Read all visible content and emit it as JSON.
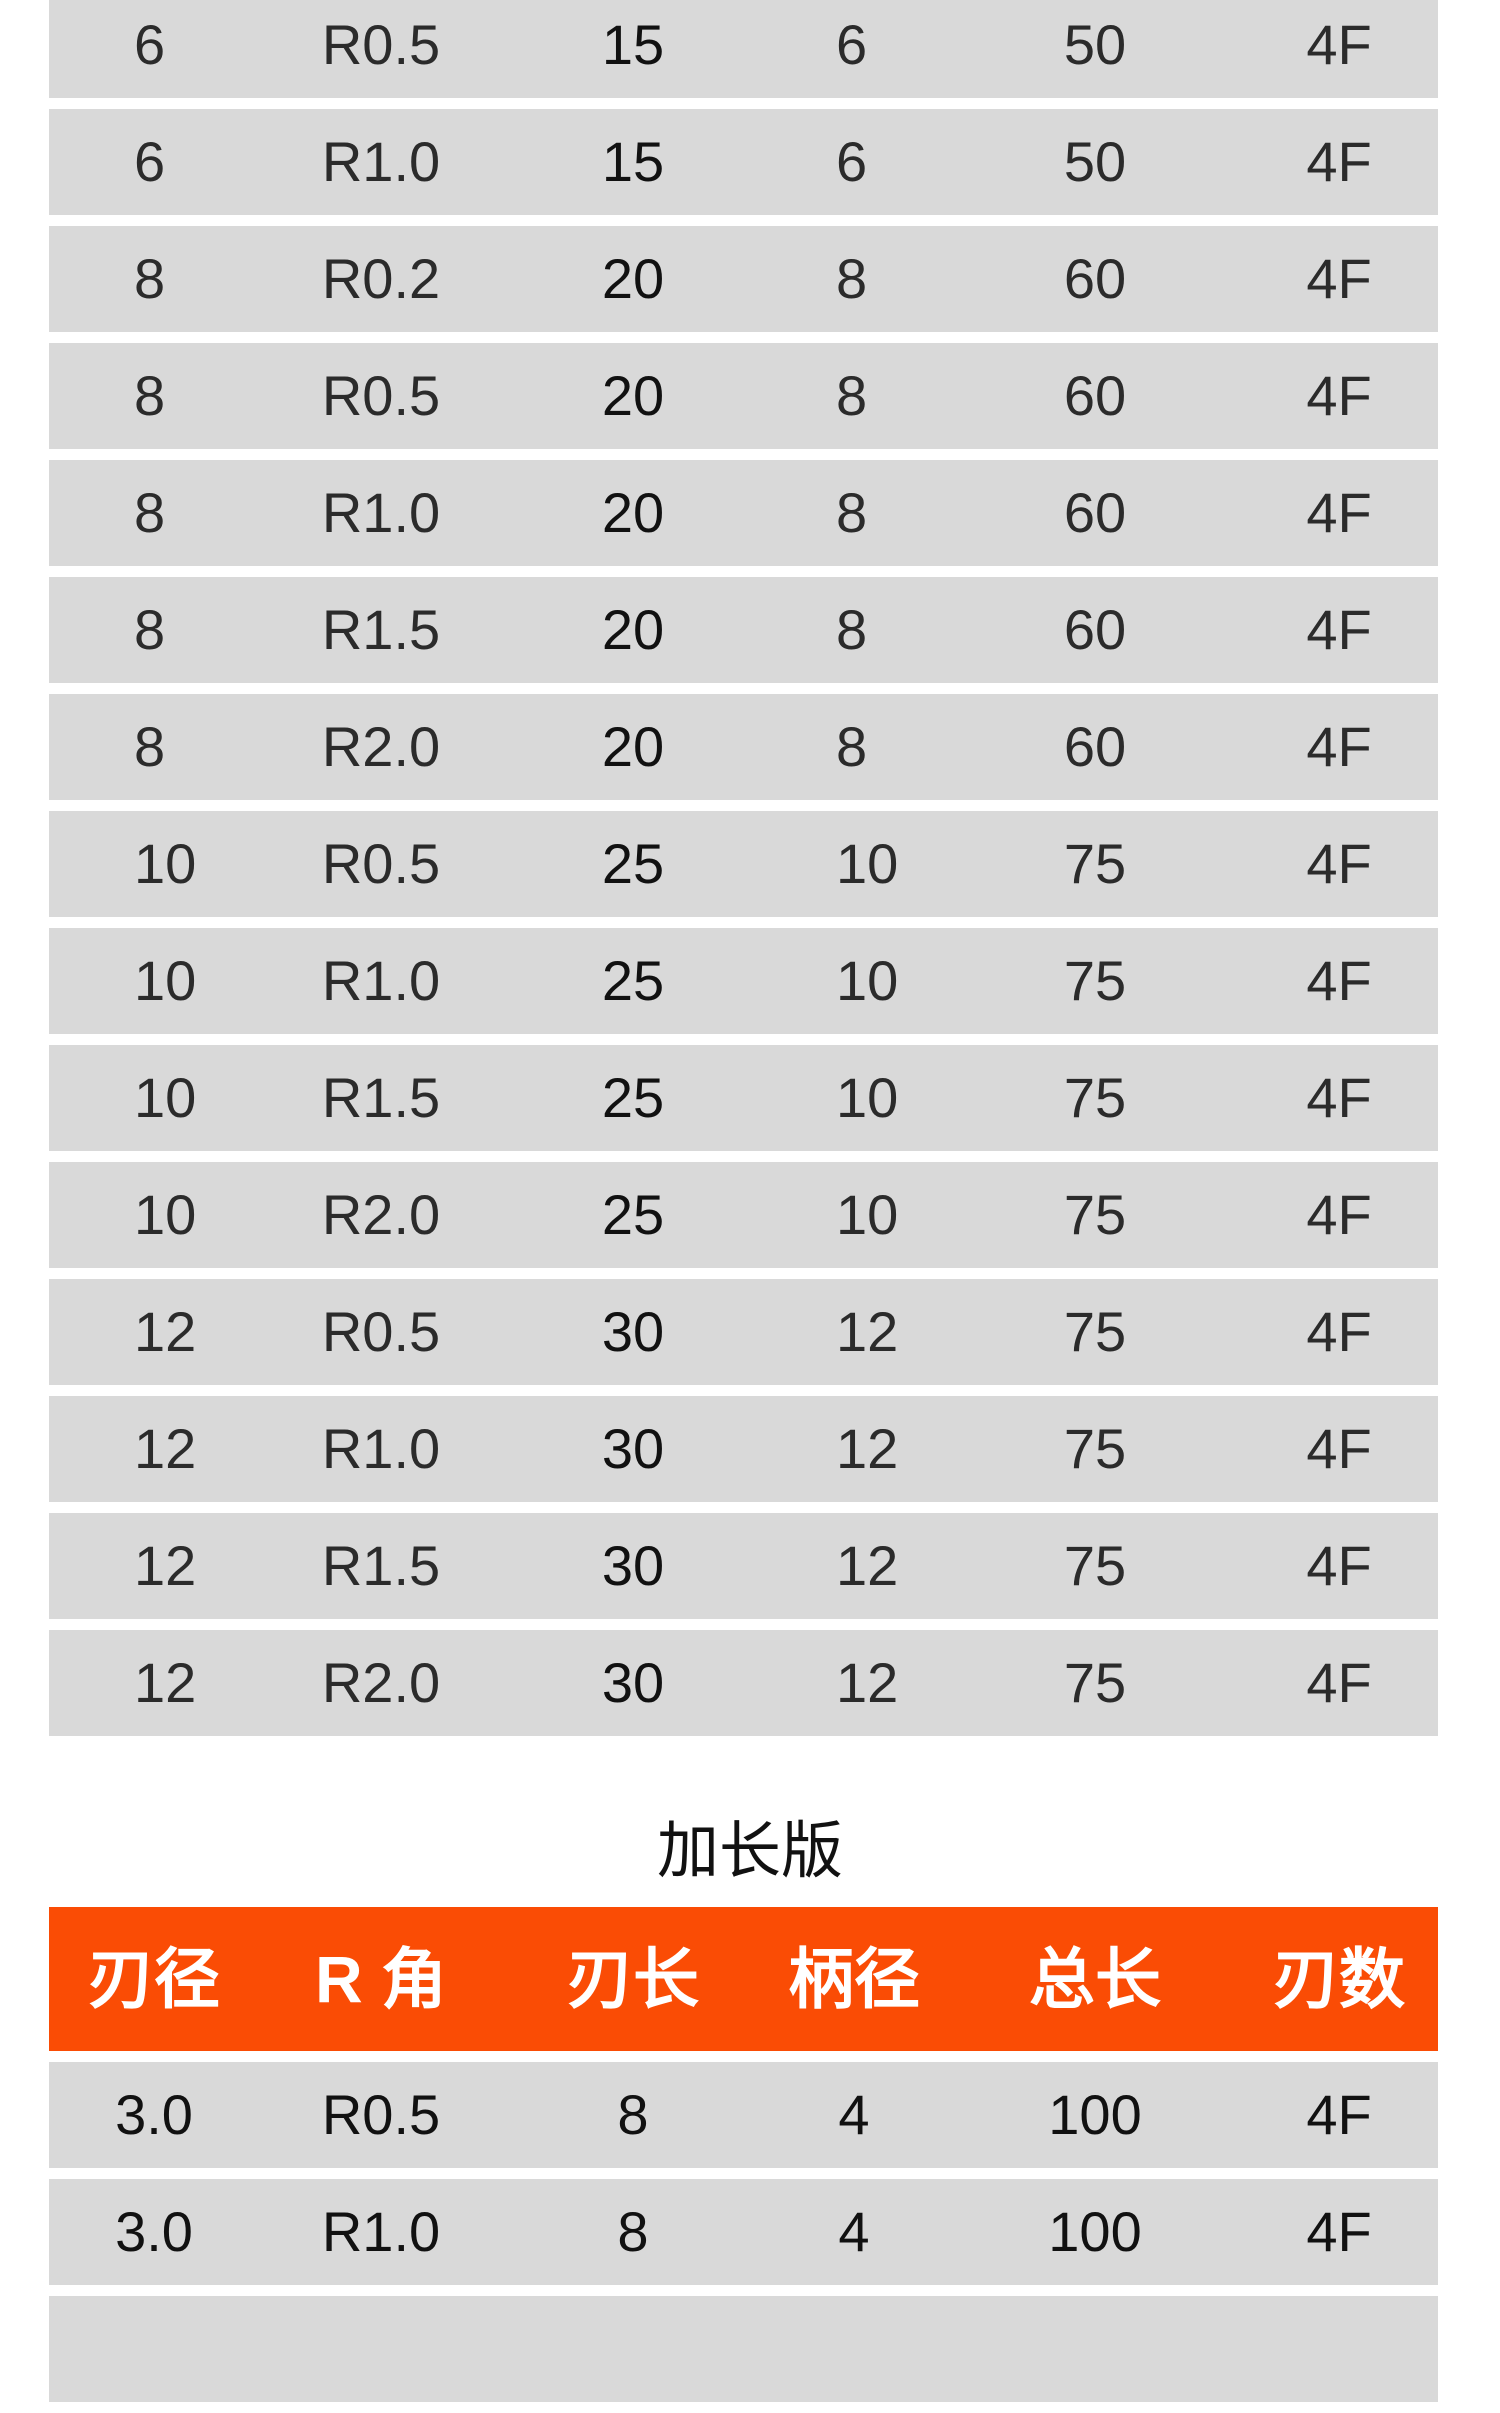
{
  "table1": {
    "rows": [
      [
        "6",
        "R0.5",
        "15",
        "6",
        "50",
        "4F"
      ],
      [
        "6",
        "R1.0",
        "15",
        "6",
        "50",
        "4F"
      ],
      [
        "8",
        "R0.2",
        "20",
        "8",
        "60",
        "4F"
      ],
      [
        "8",
        "R0.5",
        "20",
        "8",
        "60",
        "4F"
      ],
      [
        "8",
        "R1.0",
        "20",
        "8",
        "60",
        "4F"
      ],
      [
        "8",
        "R1.5",
        "20",
        "8",
        "60",
        "4F"
      ],
      [
        "8",
        "R2.0",
        "20",
        "8",
        "60",
        "4F"
      ],
      [
        "10",
        "R0.5",
        "25",
        "10",
        "75",
        "4F"
      ],
      [
        "10",
        "R1.0",
        "25",
        "10",
        "75",
        "4F"
      ],
      [
        "10",
        "R1.5",
        "25",
        "10",
        "75",
        "4F"
      ],
      [
        "10",
        "R2.0",
        "25",
        "10",
        "75",
        "4F"
      ],
      [
        "12",
        "R0.5",
        "30",
        "12",
        "75",
        "4F"
      ],
      [
        "12",
        "R1.0",
        "30",
        "12",
        "75",
        "4F"
      ],
      [
        "12",
        "R1.5",
        "30",
        "12",
        "75",
        "4F"
      ],
      [
        "12",
        "R2.0",
        "30",
        "12",
        "75",
        "4F"
      ]
    ]
  },
  "section_title": "加长版",
  "table2": {
    "header_color": "#fa4c05",
    "headers": [
      "刃径",
      "R 角",
      "刃长",
      "柄径",
      "总长",
      "刃数"
    ],
    "rows": [
      [
        "3.0",
        "R0.5",
        "8",
        "4",
        "100",
        "4F"
      ],
      [
        "3.0",
        "R1.0",
        "8",
        "4",
        "100",
        "4F"
      ],
      [
        "",
        "",
        "",
        "",
        "",
        ""
      ]
    ]
  }
}
